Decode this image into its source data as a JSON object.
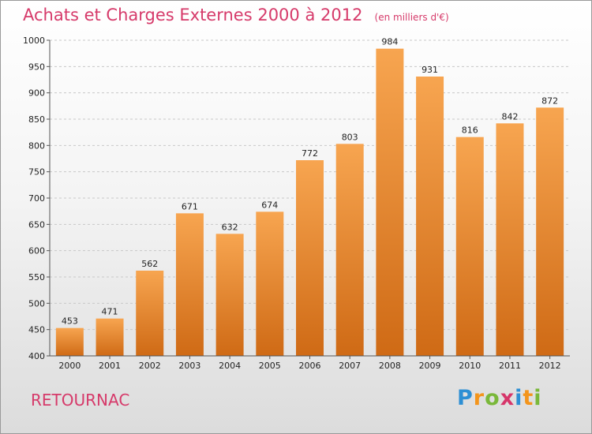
{
  "title": "Achats et Charges Externes 2000 à 2012",
  "unit": "(en milliers d'€)",
  "city": "RETOURNAC",
  "brand": {
    "letters": [
      "P",
      "r",
      "o",
      "x",
      "i",
      "t",
      "i"
    ],
    "colors": [
      "#2d8fd4",
      "#f3951c",
      "#7ab83a",
      "#d6366a",
      "#2d8fd4",
      "#f3951c",
      "#7ab83a"
    ]
  },
  "colors": {
    "title": "#d63a6a",
    "bar_top": "#f7a550",
    "bar_bottom": "#cf6a15"
  },
  "chart_data": {
    "type": "bar",
    "categories": [
      "2000",
      "2001",
      "2002",
      "2003",
      "2004",
      "2005",
      "2006",
      "2007",
      "2008",
      "2009",
      "2010",
      "2011",
      "2012"
    ],
    "values": [
      453,
      471,
      562,
      671,
      632,
      674,
      772,
      803,
      984,
      931,
      816,
      842,
      872
    ],
    "ylim": [
      400,
      1000
    ],
    "yticks": [
      400,
      450,
      500,
      550,
      600,
      650,
      700,
      750,
      800,
      850,
      900,
      950,
      1000
    ],
    "grid": true
  }
}
